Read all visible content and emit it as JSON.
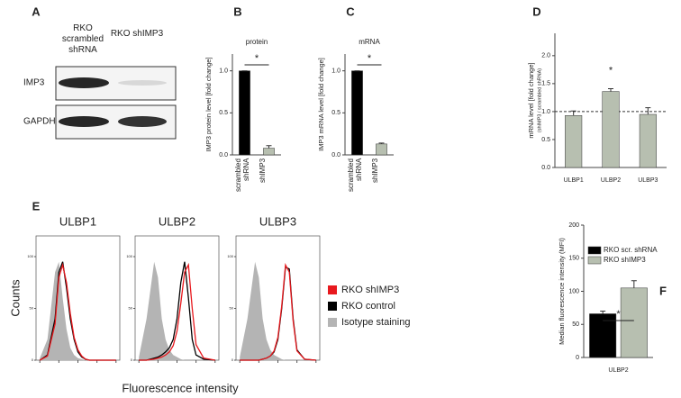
{
  "chart_data": [
    {
      "type": "blot",
      "panel": "A",
      "lanes": [
        "RKO scrambled shRNA",
        "RKO shIMP3"
      ],
      "rows": [
        "IMP3",
        "GAPDH"
      ]
    },
    {
      "type": "bar",
      "panel": "B",
      "title": "protein",
      "ylabel": "IMP3 protein level [fold change]",
      "categories": [
        "scrambled shRNA",
        "shIMP3"
      ],
      "values": [
        1.0,
        0.08
      ],
      "errors": [
        0,
        0.03
      ],
      "colors": [
        "#000000",
        "#b7bfb0"
      ],
      "ylim": [
        0,
        1.2
      ],
      "yticks": [
        {
          "value": 0,
          "label": "0.0"
        },
        0.5,
        {
          "value": 1,
          "label": "1.0"
        }
      ],
      "xtick_rotation": 90,
      "annotation": {
        "text": "*"
      }
    },
    {
      "type": "bar",
      "panel": "C",
      "title": "mRNA",
      "ylabel": "IMP3 mRNA level [fold change]",
      "categories": [
        "scrambled shRNA",
        "shIMP3"
      ],
      "values": [
        1.0,
        0.13
      ],
      "errors": [
        0,
        0.01
      ],
      "colors": [
        "#000000",
        "#b7bfb0"
      ],
      "ylim": [
        0,
        1.2
      ],
      "yticks": [
        {
          "value": 0,
          "label": "0.0"
        },
        0.5,
        {
          "value": 1,
          "label": "1.0"
        }
      ],
      "xtick_rotation": 90,
      "annotation": {
        "text": "*"
      }
    },
    {
      "type": "bar",
      "panel": "D",
      "ylabel": "mRNA level [fold change]",
      "ylabel_sub": "(shIMP3 / scrambled shRNA)",
      "categories": [
        "ULBP1",
        "ULBP2",
        "ULBP3"
      ],
      "values": [
        0.93,
        1.36,
        0.95
      ],
      "errors": [
        0.08,
        0.05,
        0.12
      ],
      "colors": [
        "#b7bfb0",
        "#b7bfb0",
        "#b7bfb0"
      ],
      "ylim": [
        0,
        2.4
      ],
      "yticks": [
        {
          "value": 0,
          "label": "0.0"
        },
        0.5,
        {
          "value": 1,
          "label": "1.0"
        },
        1.5,
        {
          "value": 2,
          "label": "2.0"
        }
      ],
      "refline": 1,
      "annotation": {
        "text": "*",
        "at": "ULBP2"
      }
    },
    {
      "type": "area",
      "panel": "E",
      "ylabel": "Counts",
      "xlabel": "Fluorescence intensity",
      "x": [
        1,
        1.4,
        1.8,
        2.0,
        2.2,
        2.4,
        2.6,
        2.8,
        3.0,
        3.2,
        3.4,
        3.6,
        3.8,
        4.0,
        4.4,
        5.0
      ],
      "xlim": [
        0.8,
        5.2
      ],
      "xticks": [
        1,
        2,
        3,
        4,
        5
      ],
      "ylim": [
        0,
        120
      ],
      "yticks": [
        0,
        50,
        100
      ],
      "legend": [
        {
          "name": "RKO shIMP3",
          "color": "#e8191e",
          "fill": false
        },
        {
          "name": "RKO control",
          "color": "#000000",
          "fill": false
        },
        {
          "name": "Isotype staining",
          "color": "#b4b4b4",
          "fill": true
        }
      ],
      "plots": [
        {
          "title": "ULBP1",
          "series": [
            [
              0,
              4,
              35,
              80,
              92,
              75,
              45,
              22,
              10,
              4,
              1,
              0,
              0,
              0,
              0,
              0
            ],
            [
              0,
              5,
              40,
              85,
              95,
              70,
              40,
              20,
              8,
              3,
              1,
              0,
              0,
              0,
              0,
              0
            ],
            [
              2,
              20,
              85,
              95,
              60,
              30,
              12,
              5,
              2,
              1,
              0,
              0,
              0,
              0,
              0,
              0
            ]
          ]
        },
        {
          "title": "ULBP2",
          "series": [
            [
              0,
              0,
              1,
              2,
              3,
              5,
              8,
              14,
              28,
              55,
              85,
              92,
              50,
              15,
              2,
              0
            ],
            [
              0,
              0,
              2,
              3,
              5,
              8,
              12,
              20,
              40,
              75,
              95,
              60,
              20,
              5,
              1,
              0
            ],
            [
              3,
              40,
              95,
              80,
              40,
              20,
              10,
              5,
              3,
              1,
              0,
              0,
              0,
              0,
              0,
              0
            ]
          ]
        },
        {
          "title": "ULBP3",
          "series": [
            [
              0,
              0,
              0,
              0,
              1,
              2,
              4,
              9,
              22,
              52,
              92,
              85,
              38,
              9,
              1,
              0
            ],
            [
              0,
              0,
              0,
              0,
              1,
              2,
              4,
              8,
              20,
              50,
              90,
              88,
              40,
              10,
              1,
              0
            ],
            [
              3,
              40,
              95,
              80,
              40,
              20,
              10,
              5,
              3,
              1,
              0,
              0,
              0,
              0,
              0,
              0
            ]
          ]
        }
      ]
    },
    {
      "type": "bar",
      "panel": "F",
      "ylabel": "Median fluorescence intensity (MFI)",
      "categories": [
        "ULBP2"
      ],
      "series": [
        {
          "name": "RKO scr. shRNA",
          "color": "#000000",
          "values": [
            66
          ],
          "errors": [
            4
          ]
        },
        {
          "name": "RKO shIMP3",
          "color": "#b7bfb0",
          "values": [
            105
          ],
          "errors": [
            11
          ]
        }
      ],
      "ylim": [
        0,
        200
      ],
      "yticks": [
        0,
        50,
        100,
        150,
        200
      ],
      "annotation": {
        "text": "*"
      }
    }
  ]
}
